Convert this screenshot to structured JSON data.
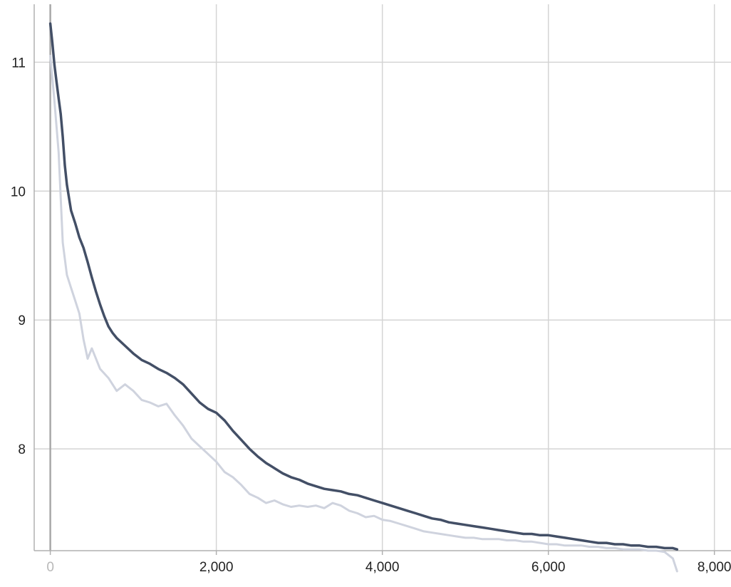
{
  "chart_data": {
    "type": "line",
    "title": "",
    "xlabel": "",
    "ylabel": "",
    "xlim": [
      -194,
      8200
    ],
    "ylim": [
      7.21,
      11.45
    ],
    "x_ticks": [
      0,
      2000,
      4000,
      6000,
      8000
    ],
    "x_tick_labels": [
      "0",
      "2,000",
      "4,000",
      "6,000",
      "8,000"
    ],
    "y_ticks": [
      8,
      9,
      10,
      11
    ],
    "y_tick_labels": [
      "8",
      "9",
      "10",
      "11"
    ],
    "grid": true,
    "legend": "none",
    "series": [
      {
        "role": "raw",
        "color": "#cfd3de",
        "x": [
          0,
          50,
          100,
          150,
          200,
          250,
          300,
          350,
          400,
          450,
          500,
          600,
          700,
          800,
          900,
          1000,
          1100,
          1200,
          1300,
          1400,
          1500,
          1600,
          1700,
          1800,
          1900,
          2000,
          2100,
          2200,
          2300,
          2400,
          2500,
          2600,
          2700,
          2800,
          2900,
          3000,
          3100,
          3200,
          3300,
          3400,
          3500,
          3600,
          3700,
          3800,
          3900,
          4000,
          4100,
          4200,
          4300,
          4400,
          4500,
          4600,
          4700,
          4800,
          4900,
          5000,
          5100,
          5200,
          5300,
          5400,
          5500,
          5600,
          5700,
          5800,
          5900,
          6000,
          6100,
          6200,
          6300,
          6400,
          6500,
          6600,
          6700,
          6800,
          6900,
          7000,
          7100,
          7200,
          7300,
          7400,
          7500,
          7550
        ],
        "y": [
          11.05,
          10.7,
          10.3,
          9.6,
          9.35,
          9.25,
          9.15,
          9.05,
          8.85,
          8.7,
          8.78,
          8.62,
          8.55,
          8.45,
          8.5,
          8.45,
          8.38,
          8.36,
          8.33,
          8.35,
          8.26,
          8.18,
          8.08,
          8.02,
          7.96,
          7.9,
          7.82,
          7.78,
          7.72,
          7.65,
          7.62,
          7.58,
          7.6,
          7.57,
          7.55,
          7.56,
          7.55,
          7.56,
          7.54,
          7.58,
          7.56,
          7.52,
          7.5,
          7.47,
          7.48,
          7.45,
          7.44,
          7.42,
          7.4,
          7.38,
          7.36,
          7.35,
          7.34,
          7.33,
          7.32,
          7.31,
          7.31,
          7.3,
          7.3,
          7.3,
          7.29,
          7.29,
          7.28,
          7.28,
          7.27,
          7.26,
          7.26,
          7.25,
          7.25,
          7.25,
          7.24,
          7.24,
          7.23,
          7.23,
          7.22,
          7.22,
          7.22,
          7.21,
          7.21,
          7.2,
          7.15,
          7.05
        ]
      },
      {
        "role": "smoothed",
        "color": "#434f66",
        "x": [
          0,
          25,
          50,
          75,
          100,
          125,
          150,
          175,
          200,
          250,
          300,
          350,
          400,
          450,
          500,
          550,
          600,
          650,
          700,
          750,
          800,
          900,
          1000,
          1100,
          1200,
          1300,
          1400,
          1500,
          1600,
          1700,
          1800,
          1900,
          2000,
          2100,
          2200,
          2300,
          2400,
          2500,
          2600,
          2700,
          2800,
          2900,
          3000,
          3100,
          3200,
          3300,
          3400,
          3500,
          3600,
          3700,
          3800,
          3900,
          4000,
          4100,
          4200,
          4300,
          4400,
          4500,
          4600,
          4700,
          4800,
          4900,
          5000,
          5100,
          5200,
          5300,
          5400,
          5500,
          5600,
          5700,
          5800,
          5900,
          6000,
          6100,
          6200,
          6300,
          6400,
          6500,
          6600,
          6700,
          6800,
          6900,
          7000,
          7100,
          7200,
          7300,
          7400,
          7500,
          7550
        ],
        "y": [
          11.3,
          11.15,
          10.98,
          10.85,
          10.72,
          10.6,
          10.42,
          10.2,
          10.05,
          9.85,
          9.75,
          9.64,
          9.56,
          9.45,
          9.33,
          9.22,
          9.12,
          9.03,
          8.95,
          8.9,
          8.86,
          8.8,
          8.74,
          8.69,
          8.66,
          8.62,
          8.59,
          8.55,
          8.5,
          8.43,
          8.36,
          8.31,
          8.28,
          8.22,
          8.14,
          8.07,
          8.0,
          7.94,
          7.89,
          7.85,
          7.81,
          7.78,
          7.76,
          7.73,
          7.71,
          7.69,
          7.68,
          7.67,
          7.65,
          7.64,
          7.62,
          7.6,
          7.58,
          7.56,
          7.54,
          7.52,
          7.5,
          7.48,
          7.46,
          7.45,
          7.43,
          7.42,
          7.41,
          7.4,
          7.39,
          7.38,
          7.37,
          7.36,
          7.35,
          7.34,
          7.34,
          7.33,
          7.33,
          7.32,
          7.31,
          7.3,
          7.29,
          7.28,
          7.27,
          7.27,
          7.26,
          7.26,
          7.25,
          7.25,
          7.24,
          7.24,
          7.23,
          7.23,
          7.22
        ]
      }
    ]
  }
}
